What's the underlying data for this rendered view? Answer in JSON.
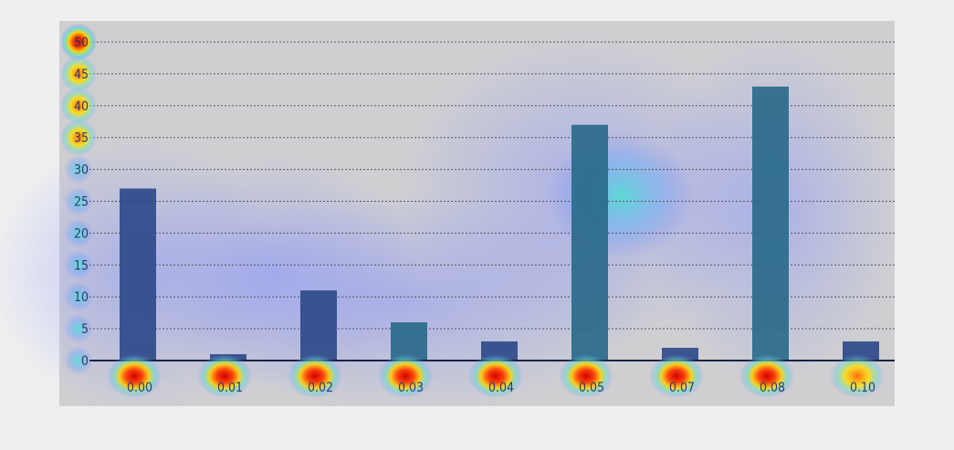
{
  "chart_data": {
    "type": "bar",
    "title": "",
    "xlabel": "",
    "ylabel": "",
    "categories": [
      "0.00",
      "0.01",
      "0.02",
      "0.03",
      "0.04",
      "0.05",
      "0.07",
      "0.08",
      "0.10"
    ],
    "values": [
      27,
      1,
      11,
      6,
      3,
      37,
      2,
      43,
      3
    ],
    "ylim": [
      0,
      50
    ],
    "yticks": [
      0,
      5,
      10,
      15,
      20,
      25,
      30,
      35,
      40,
      45,
      50
    ],
    "grid": true,
    "legend": "none",
    "colors": {
      "bar": "#2f4a8a",
      "bar_alt": "#2a6a8a",
      "axis": "#1b2345",
      "grid": "#555566",
      "panel": "#cfcfd2"
    }
  }
}
